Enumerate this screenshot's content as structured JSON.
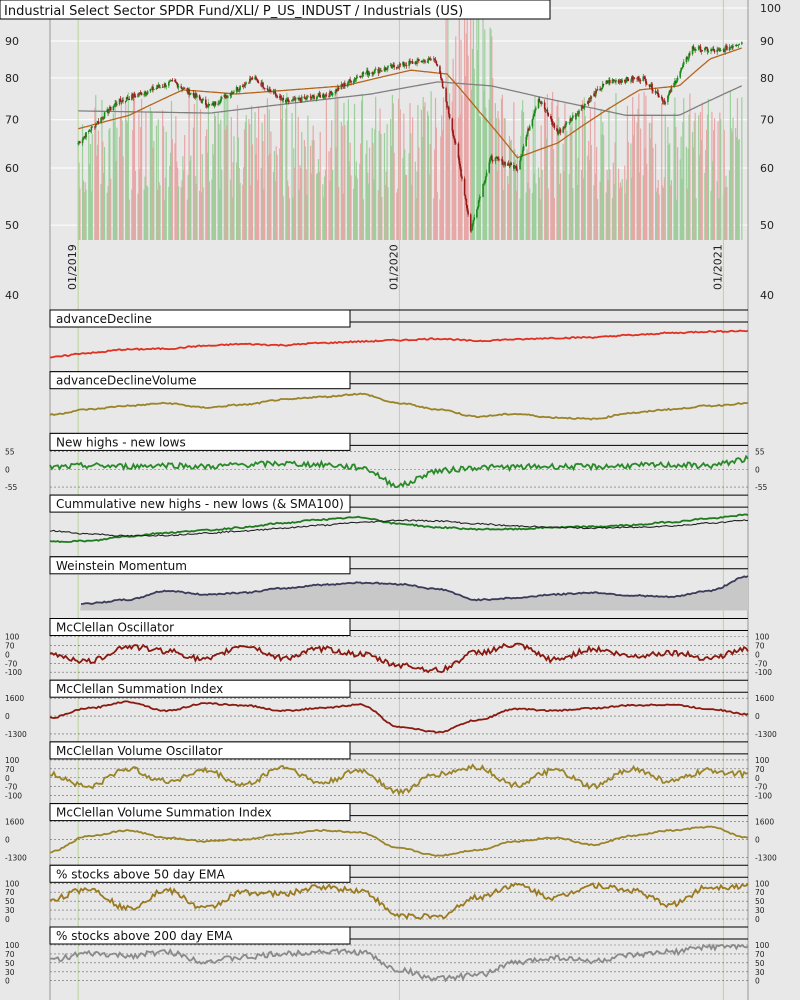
{
  "colors": {
    "background": "#e8e8e8",
    "plot_bg": "#e8e8e8",
    "grid": "#ffffff",
    "axis_text": "#222222",
    "candle_up": "#1a8a1a",
    "candle_down": "#9b1b1b",
    "vol_up": "#9ccf9c",
    "vol_down": "#e8a7a7",
    "sma50": "#b5651d",
    "sma200": "#808080",
    "vline": "#bcd49a",
    "label_box": "#ffffff",
    "label_border": "#000000"
  },
  "chart_data": [
    {
      "type": "candlestick",
      "title": "Industrial Select Sector SPDR Fund/XLI/ P_US_INDUST / Industrials (US)",
      "y_scale": "log",
      "ylim": [
        40,
        100
      ],
      "yticks": [
        "100",
        "90",
        "80",
        "70",
        "60",
        "50",
        "40"
      ],
      "ytick_values": [
        100,
        90,
        80,
        70,
        60,
        50,
        40
      ],
      "x_dates": [
        "01/2019",
        "01/2020",
        "01/2021"
      ],
      "price_anchors": [
        [
          "2019-01-02",
          65
        ],
        [
          "2019-02-15",
          74
        ],
        [
          "2019-04-20",
          79
        ],
        [
          "2019-06-01",
          73
        ],
        [
          "2019-07-20",
          80
        ],
        [
          "2019-08-25",
          74
        ],
        [
          "2019-10-15",
          76
        ],
        [
          "2019-11-20",
          81
        ],
        [
          "2020-01-17",
          84
        ],
        [
          "2020-02-12",
          85
        ],
        [
          "2020-03-23",
          49
        ],
        [
          "2020-04-15",
          62
        ],
        [
          "2020-05-15",
          60
        ],
        [
          "2020-06-08",
          75
        ],
        [
          "2020-06-30",
          67
        ],
        [
          "2020-08-25",
          79
        ],
        [
          "2020-10-05",
          80
        ],
        [
          "2020-10-30",
          74
        ],
        [
          "2020-11-30",
          88
        ],
        [
          "2020-12-31",
          87
        ],
        [
          "2021-01-25",
          90
        ]
      ],
      "sma50_anchors": [
        [
          "2019-01-02",
          68
        ],
        [
          "2019-03-01",
          71
        ],
        [
          "2019-05-01",
          77
        ],
        [
          "2019-07-01",
          76
        ],
        [
          "2019-09-01",
          77
        ],
        [
          "2019-11-01",
          78
        ],
        [
          "2020-01-15",
          82
        ],
        [
          "2020-02-25",
          81
        ],
        [
          "2020-04-01",
          72
        ],
        [
          "2020-05-15",
          62
        ],
        [
          "2020-06-30",
          65
        ],
        [
          "2020-08-15",
          71
        ],
        [
          "2020-10-01",
          77
        ],
        [
          "2020-11-15",
          78
        ],
        [
          "2020-12-20",
          85
        ],
        [
          "2021-01-25",
          88
        ]
      ],
      "sma200_anchors": [
        [
          "2019-01-02",
          72
        ],
        [
          "2019-06-01",
          71.5
        ],
        [
          "2019-12-01",
          76
        ],
        [
          "2020-02-15",
          79
        ],
        [
          "2020-04-15",
          78
        ],
        [
          "2020-06-15",
          75
        ],
        [
          "2020-09-15",
          71
        ],
        [
          "2020-11-15",
          71
        ],
        [
          "2021-01-25",
          78
        ]
      ]
    },
    {
      "type": "line",
      "title": "advanceDecline",
      "series": [
        {
          "values": [
            0.18,
            0.3,
            0.4,
            0.42,
            0.5,
            0.55,
            0.52,
            0.58,
            0.62,
            0.66,
            0.7,
            0.64,
            0.68,
            0.72,
            0.74,
            0.8,
            0.86,
            0.9,
            0.92
          ],
          "color": "#e03020"
        }
      ]
    },
    {
      "type": "line",
      "title": "advanceDeclineVolume",
      "series": [
        {
          "values": [
            0.3,
            0.45,
            0.55,
            0.62,
            0.5,
            0.58,
            0.72,
            0.8,
            0.88,
            0.62,
            0.45,
            0.25,
            0.32,
            0.22,
            0.18,
            0.35,
            0.45,
            0.55,
            0.62
          ],
          "color": "#9a8428"
        }
      ]
    },
    {
      "type": "line",
      "title": "New highs - new lows",
      "yticks": [
        "55",
        "0",
        "-55"
      ],
      "series": [
        {
          "values": [
            0.55,
            0.6,
            0.58,
            0.62,
            0.57,
            0.63,
            0.66,
            0.63,
            0.55,
            0.05,
            0.45,
            0.55,
            0.56,
            0.58,
            0.57,
            0.6,
            0.62,
            0.6,
            0.78
          ],
          "color": "#2a8a2a"
        }
      ]
    },
    {
      "type": "line",
      "title": "Cummulative new highs - new lows (& SMA100)",
      "series": [
        {
          "name": "cum",
          "values": [
            0.2,
            0.22,
            0.35,
            0.45,
            0.52,
            0.6,
            0.72,
            0.82,
            0.88,
            0.7,
            0.6,
            0.55,
            0.55,
            0.6,
            0.62,
            0.66,
            0.75,
            0.85,
            0.95
          ],
          "color": "#1e7a1e"
        },
        {
          "name": "sma100",
          "values": [
            0.5,
            0.42,
            0.36,
            0.38,
            0.44,
            0.5,
            0.58,
            0.66,
            0.74,
            0.8,
            0.78,
            0.7,
            0.64,
            0.6,
            0.58,
            0.6,
            0.64,
            0.72,
            0.8
          ],
          "color": "#222222"
        }
      ]
    },
    {
      "type": "area",
      "title": "Weinstein Momentum",
      "series": [
        {
          "values": [
            0.2,
            0.2,
            0.3,
            0.55,
            0.45,
            0.5,
            0.62,
            0.72,
            0.78,
            0.74,
            0.6,
            0.3,
            0.35,
            0.45,
            0.5,
            0.42,
            0.38,
            0.55,
            0.95
          ],
          "color": "#3a3a5a"
        }
      ]
    },
    {
      "type": "line",
      "title": "McClellan Oscillator",
      "yticks": [
        "100",
        "70",
        "0",
        "-70",
        "-100"
      ],
      "series": [
        {
          "values": [
            0.5,
            0.3,
            0.72,
            0.6,
            0.35,
            0.75,
            0.4,
            0.65,
            0.5,
            0.2,
            0.05,
            0.55,
            0.75,
            0.35,
            0.65,
            0.45,
            0.55,
            0.4,
            0.65
          ],
          "color": "#8a1a10"
        }
      ]
    },
    {
      "type": "line",
      "title": "McClellan Summation Index",
      "yticks": [
        "1600",
        "0",
        "-1300"
      ],
      "series": [
        {
          "values": [
            0.45,
            0.72,
            0.9,
            0.65,
            0.85,
            0.8,
            0.65,
            0.72,
            0.82,
            0.2,
            0.05,
            0.38,
            0.7,
            0.65,
            0.72,
            0.8,
            0.82,
            0.7,
            0.55
          ],
          "color": "#8a1a10"
        }
      ]
    },
    {
      "type": "line",
      "title": "McClellan Volume Oscillator",
      "yticks": [
        "100",
        "70",
        "0",
        "-70",
        "-100"
      ],
      "series": [
        {
          "values": [
            0.6,
            0.25,
            0.75,
            0.4,
            0.7,
            0.3,
            0.8,
            0.35,
            0.7,
            0.1,
            0.6,
            0.8,
            0.3,
            0.7,
            0.25,
            0.75,
            0.4,
            0.7,
            0.6
          ],
          "color": "#9a8428"
        }
      ]
    },
    {
      "type": "line",
      "title": "McClellan Volume Summation Index",
      "yticks": [
        "1600",
        "0",
        "-1300"
      ],
      "series": [
        {
          "values": [
            0.15,
            0.6,
            0.75,
            0.55,
            0.45,
            0.5,
            0.65,
            0.75,
            0.7,
            0.25,
            0.05,
            0.2,
            0.45,
            0.55,
            0.35,
            0.6,
            0.75,
            0.85,
            0.55
          ],
          "color": "#9a8428"
        }
      ]
    },
    {
      "type": "line",
      "title": "% stocks above 50 day EMA",
      "yticks": [
        "100",
        "70",
        "50",
        "30",
        "0"
      ],
      "series": [
        {
          "values": [
            0.55,
            0.85,
            0.3,
            0.8,
            0.3,
            0.75,
            0.7,
            0.9,
            0.8,
            0.1,
            0.05,
            0.6,
            0.95,
            0.6,
            0.95,
            0.8,
            0.4,
            0.9,
            0.92
          ],
          "color": "#9a7a20"
        }
      ]
    },
    {
      "type": "line",
      "title": "% stocks above 200 day EMA",
      "yticks": [
        "100",
        "70",
        "50",
        "30",
        "0"
      ],
      "series": [
        {
          "values": [
            0.6,
            0.75,
            0.7,
            0.8,
            0.55,
            0.65,
            0.75,
            0.82,
            0.8,
            0.3,
            0.05,
            0.15,
            0.5,
            0.65,
            0.55,
            0.7,
            0.8,
            0.95,
            0.97
          ],
          "color": "#8a8a8a"
        }
      ]
    }
  ]
}
